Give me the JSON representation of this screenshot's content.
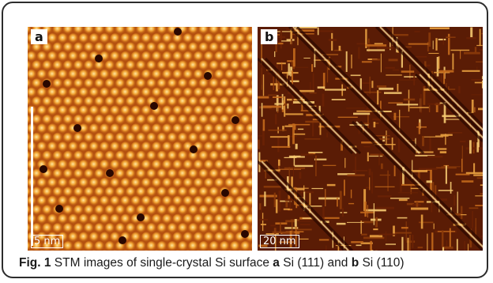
{
  "figure": {
    "panels": [
      {
        "letter": "a",
        "scale_label": "5 nm",
        "surface": "Si (111)"
      },
      {
        "letter": "b",
        "scale_label": "20 nm",
        "surface": "Si (110)"
      }
    ],
    "caption": {
      "fig_label": "Fig. 1",
      "text": " STM images of single-crystal Si surface ",
      "a_letter": "a",
      "a_surface": " Si (111) and ",
      "b_letter": "b",
      "b_surface": " Si (110)"
    },
    "colors": {
      "dark": "#3a0e00",
      "mid": "#a8440a",
      "bright": "#ffd070"
    }
  }
}
